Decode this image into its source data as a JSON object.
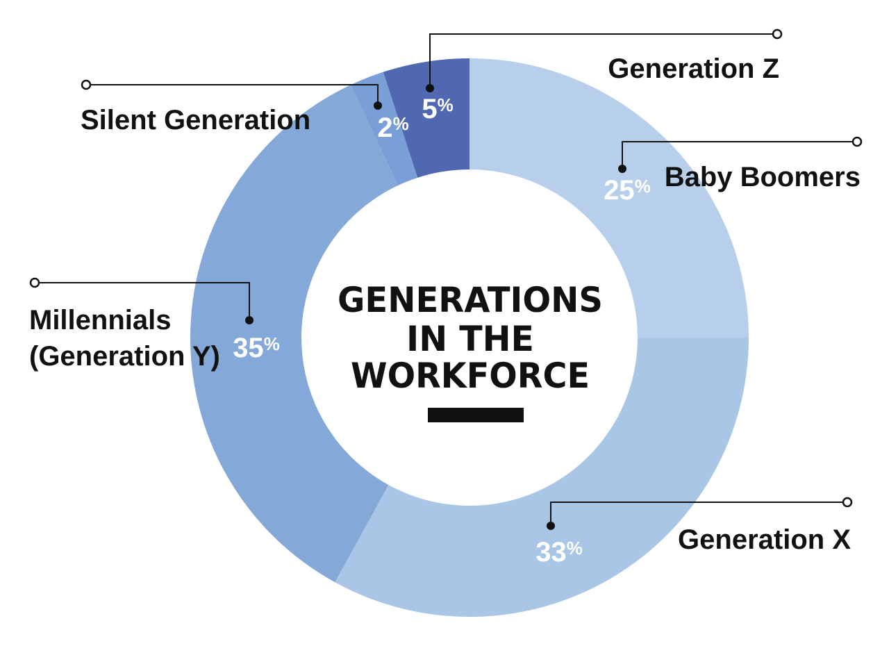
{
  "chart_data": {
    "type": "pie",
    "variant": "donut",
    "title_lines": [
      "GENERATIONS",
      "IN THE",
      "WORKFORCE"
    ],
    "title_accent_color": "#2a86c3",
    "unit": "%",
    "segments": [
      {
        "label": "Baby Boomers",
        "value": 25,
        "color": "#b8cfec"
      },
      {
        "label": "Generation X",
        "value": 33,
        "color": "#a9c6e6"
      },
      {
        "label": "Millennials (Generation Y)",
        "label_lines": [
          "Millennials",
          "(Generation Y)"
        ],
        "value": 35,
        "color": "#84a8d8"
      },
      {
        "label": "Silent Generation",
        "value": 2,
        "color": "#7a9fd6"
      },
      {
        "label": "Generation Z",
        "value": 5,
        "color": "#5068b2"
      }
    ]
  }
}
